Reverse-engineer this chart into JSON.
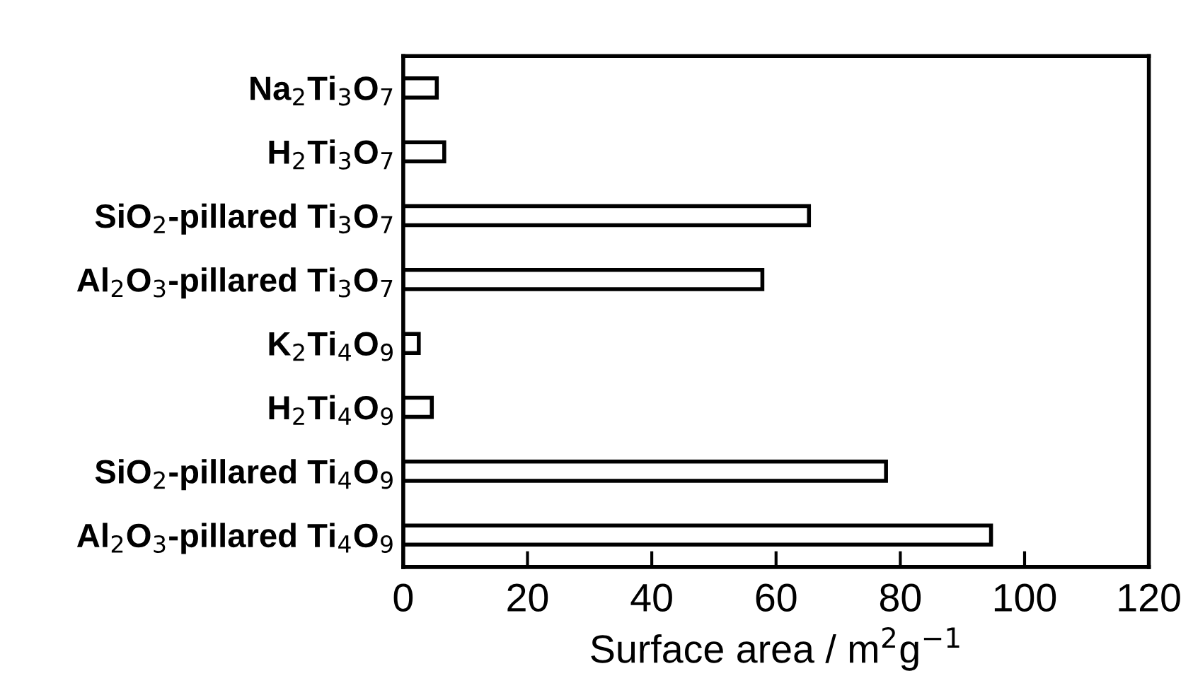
{
  "chart_data": {
    "type": "bar",
    "orientation": "horizontal",
    "categories": [
      "Na$_{2}$Ti$_{3}$O$_{7}$",
      "H$_{2}$Ti$_{3}$O$_{7}$",
      "SiO$_{2}$-pillared Ti$_{3}$O$_{7}$",
      "Al$_{2}$O$_{3}$-pillared Ti$_{3}$O$_{7}$",
      "K$_{2}$Ti$_{4}$O$_{9}$",
      "H$_{2}$Ti$_{4}$O$_{9}$",
      "SiO$_{2}$-pillared Ti$_{4}$O$_{9}$",
      "Al$_{2}$O$_{3}$-pillared Ti$_{4}$O$_{9}$"
    ],
    "values": [
      5.4,
      6.6,
      65.3,
      57.8,
      2.5,
      4.6,
      77.7,
      94.6
    ],
    "color": "#ffffff",
    "xlabel": "Surface area / m$^{2}$g$^{−1}$",
    "xlim": [
      0,
      120
    ],
    "xticks": [
      0,
      20,
      40,
      60,
      80,
      100,
      120
    ],
    "grid": false
  }
}
